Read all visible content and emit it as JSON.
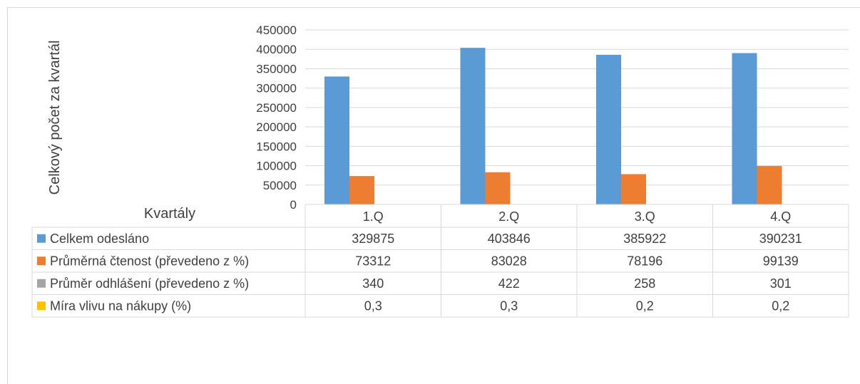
{
  "chart_data": {
    "type": "bar",
    "ylabel": "Celkový počet za kvartál",
    "xlabel": "Kvartály",
    "ylim": [
      0,
      450000
    ],
    "ytick_step": 50000,
    "grid": true,
    "legend": "data-table",
    "categories": [
      "1.Q",
      "2.Q",
      "3.Q",
      "4.Q"
    ],
    "series": [
      {
        "name": "Celkem odesláno",
        "color": "#5b9bd5",
        "values": [
          329875,
          403846,
          385922,
          390231
        ],
        "labels": [
          "329875",
          "403846",
          "385922",
          "390231"
        ]
      },
      {
        "name": "Průměrná čtenost (převedeno z %)",
        "color": "#ed7d31",
        "values": [
          73312,
          83028,
          78196,
          99139
        ],
        "labels": [
          "73312",
          "83028",
          "78196",
          "99139"
        ]
      },
      {
        "name": "Průměr odhlášení (převedeno z %)",
        "color": "#a5a5a5",
        "values": [
          340,
          422,
          258,
          301
        ],
        "labels": [
          "340",
          "422",
          "258",
          "301"
        ]
      },
      {
        "name": "Míra vlivu na nákupy (%)",
        "color": "#ffc000",
        "values": [
          0.3,
          0.3,
          0.2,
          0.2
        ],
        "labels": [
          "0,3",
          "0,3",
          "0,2",
          "0,2"
        ]
      }
    ]
  }
}
